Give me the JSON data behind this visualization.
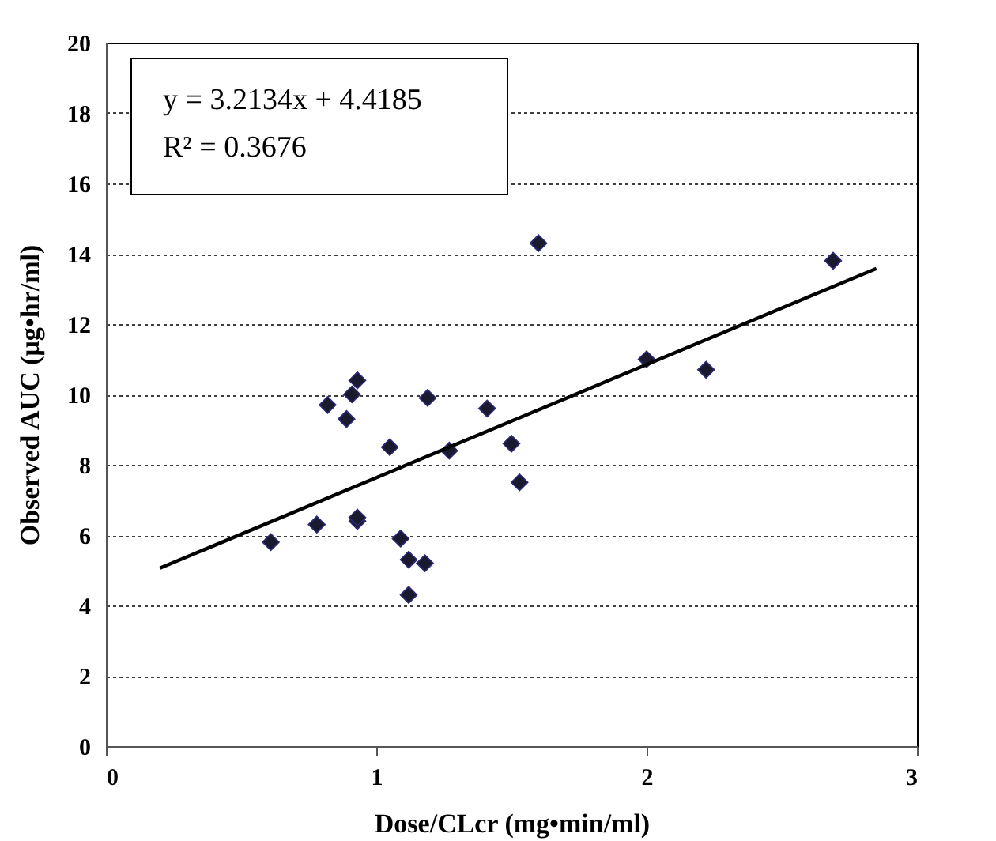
{
  "chart_data": {
    "type": "scatter",
    "xlabel": "Dose/CLcr (mg•min/ml)",
    "ylabel": "Observed AUC  (μg•hr/ml)",
    "annotations": [
      "y = 3.2134x + 4.4185",
      "R² = 0.3676"
    ],
    "series": [
      {
        "color": "#1a1a2e",
        "marker": "diamond",
        "x": [
          0.61,
          0.78,
          0.82,
          0.89,
          0.91,
          0.93,
          0.93,
          0.93,
          1.05,
          1.09,
          1.12,
          1.12,
          1.18,
          1.19,
          1.27,
          1.41,
          1.5,
          1.53,
          1.6,
          2.0,
          2.22,
          2.69
        ],
        "values": [
          5.8,
          6.3,
          9.7,
          9.3,
          10.0,
          10.4,
          6.4,
          6.5,
          8.5,
          5.9,
          5.3,
          4.3,
          5.2,
          9.9,
          8.4,
          9.6,
          8.6,
          7.5,
          14.3,
          11.0,
          10.7,
          13.8
        ]
      },
      {
        "type": "line",
        "color": "#000000",
        "line_style": "solid",
        "x": [
          0.2,
          2.85
        ],
        "values": [
          5.06,
          13.58
        ]
      }
    ],
    "xlim": [
      0,
      3
    ],
    "xticks": [
      {
        "value": 0,
        "label": "0"
      },
      {
        "value": 1,
        "label": "1"
      },
      {
        "value": 2,
        "label": "2"
      },
      {
        "value": 3,
        "label": "3"
      }
    ],
    "ylim": [
      0,
      20
    ],
    "yticks": [
      0,
      2,
      4,
      6,
      8,
      10,
      12,
      14,
      16,
      18,
      20
    ],
    "grid": "y"
  }
}
